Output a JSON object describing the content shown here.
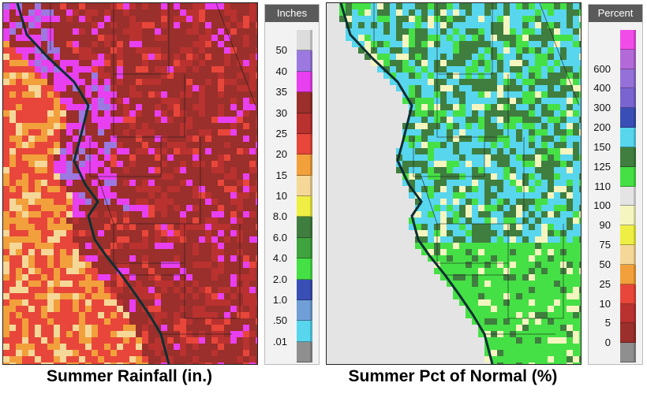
{
  "maps": [
    {
      "title": "Summer Rainfall (in.)",
      "legend_title": "Inches",
      "legend": [
        {
          "label": "50",
          "color": "#dcdcdc"
        },
        {
          "label": "40",
          "color": "#9b79e0"
        },
        {
          "label": "35",
          "color": "#e83ff0"
        },
        {
          "label": "30",
          "color": "#9a2f2b"
        },
        {
          "label": "25",
          "color": "#b93230"
        },
        {
          "label": "20",
          "color": "#e8463a"
        },
        {
          "label": "15",
          "color": "#f2a03c"
        },
        {
          "label": "10",
          "color": "#f5d898"
        },
        {
          "label": "8.0",
          "color": "#eeee44"
        },
        {
          "label": "6.0",
          "color": "#3f7e3f"
        },
        {
          "label": "4.0",
          "color": "#3fa43f"
        },
        {
          "label": "2.0",
          "color": "#45e045"
        },
        {
          "label": "1.0",
          "color": "#3a4fb6"
        },
        {
          "label": ".50",
          "color": "#6f9fd6"
        },
        {
          "label": ".01",
          "color": "#57d6ee"
        },
        {
          "label": "",
          "color": "#8f8f8f"
        }
      ]
    },
    {
      "title": "Summer Pct of Normal (%)",
      "legend_title": "Percent",
      "legend": [
        {
          "label": "",
          "color": "#f24ce8"
        },
        {
          "label": "600",
          "color": "#b36ad8"
        },
        {
          "label": "400",
          "color": "#9470d8"
        },
        {
          "label": "300",
          "color": "#7a64d0"
        },
        {
          "label": "200",
          "color": "#3a4fb6"
        },
        {
          "label": "150",
          "color": "#57d6ee"
        },
        {
          "label": "125",
          "color": "#3f7e3f"
        },
        {
          "label": "110",
          "color": "#45e045"
        },
        {
          "label": "100",
          "color": "#e4e4e4"
        },
        {
          "label": "90",
          "color": "#f5f5c0"
        },
        {
          "label": "75",
          "color": "#eeee44"
        },
        {
          "label": "50",
          "color": "#f5d898"
        },
        {
          "label": "25",
          "color": "#f2a03c"
        },
        {
          "label": "10",
          "color": "#e8463a"
        },
        {
          "label": "5",
          "color": "#b93230"
        },
        {
          "label": "0",
          "color": "#9a2f2b"
        },
        {
          "label": "",
          "color": "#8f8f8f"
        }
      ]
    }
  ]
}
